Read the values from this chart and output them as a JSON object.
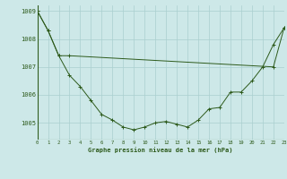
{
  "title": "Graphe pression niveau de la mer (hPa)",
  "background_color": "#cde8e8",
  "grid_color": "#aacfcf",
  "line_color": "#2d5a1b",
  "xlim": [
    0,
    23
  ],
  "ylim": [
    1004.4,
    1009.2
  ],
  "yticks": [
    1005,
    1006,
    1007,
    1008,
    1009
  ],
  "xtick_labels": [
    "0",
    "1",
    "2",
    "3",
    "4",
    "5",
    "6",
    "7",
    "8",
    "9",
    "10",
    "11",
    "12",
    "13",
    "14",
    "15",
    "16",
    "17",
    "18",
    "19",
    "20",
    "21",
    "22",
    "23"
  ],
  "series1_x": [
    0,
    1,
    2,
    3,
    22,
    23
  ],
  "series1_y": [
    1009.0,
    1008.3,
    1007.4,
    1007.4,
    1007.0,
    1008.4
  ],
  "series2_x": [
    0,
    1,
    2,
    3,
    4,
    5,
    6,
    7,
    8,
    9,
    10,
    11,
    12,
    13,
    14,
    15,
    16,
    17,
    18,
    19,
    20,
    21,
    22,
    23
  ],
  "series2_y": [
    1009.0,
    1008.3,
    1007.4,
    1006.7,
    1006.3,
    1005.8,
    1005.3,
    1005.1,
    1004.85,
    1004.75,
    1004.85,
    1005.0,
    1005.05,
    1004.95,
    1004.85,
    1005.1,
    1005.5,
    1005.55,
    1006.1,
    1006.1,
    1006.5,
    1007.0,
    1007.8,
    1008.4
  ],
  "figsize": [
    3.2,
    2.0
  ],
  "dpi": 100
}
